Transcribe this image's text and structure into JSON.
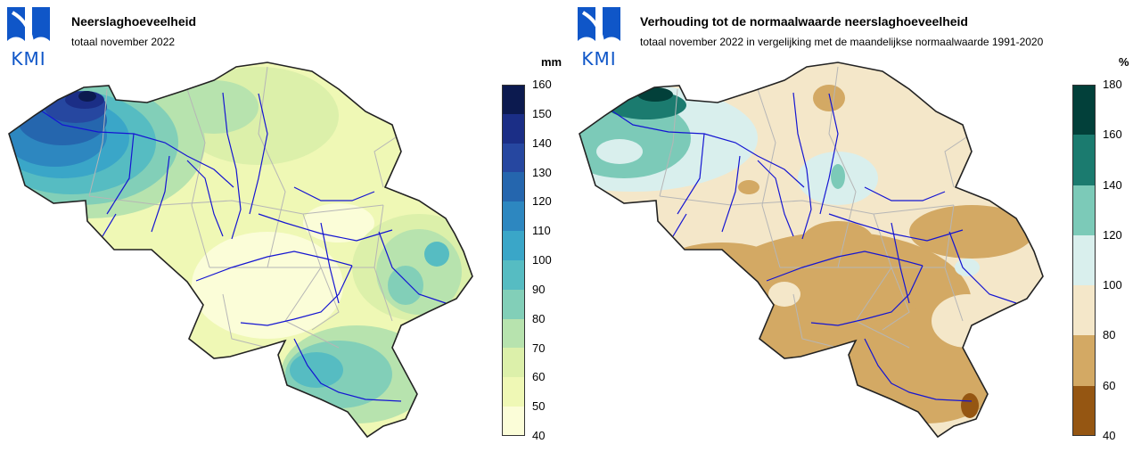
{
  "logo": {
    "text": "KMI",
    "color": "#0f56c8"
  },
  "left": {
    "title": "Neerslaghoeveelheid",
    "subtitle": "totaal november 2022",
    "unit": "mm",
    "ticks": [
      "160",
      "150",
      "140",
      "130",
      "120",
      "110",
      "100",
      "90",
      "80",
      "70",
      "60",
      "50",
      "40"
    ],
    "colors": [
      "#0c1a4f",
      "#1b2e86",
      "#2647a0",
      "#2566ae",
      "#2d87c0",
      "#3aa6c8",
      "#56bcc2",
      "#82cfb8",
      "#b7e3ae",
      "#dcf0aa",
      "#eff8b5",
      "#fbfdd8"
    ]
  },
  "right": {
    "title": "Verhouding tot de normaalwaarde neerslaghoeveelheid",
    "subtitle": "totaal november 2022 in vergelijking met de maandelijkse normaalwaarde 1991-2020",
    "unit": "%",
    "ticks": [
      "180",
      "160",
      "140",
      "120",
      "100",
      "80",
      "60",
      "40"
    ],
    "colors": [
      "#02403a",
      "#1b7b6f",
      "#7ccab8",
      "#d9efed",
      "#f4e7c9",
      "#d3a964",
      "#955612"
    ]
  }
}
